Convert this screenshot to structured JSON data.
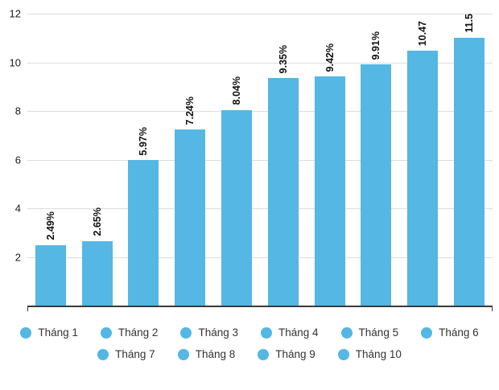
{
  "chart_data": {
    "type": "bar",
    "categories": [
      "Tháng 1",
      "Tháng 2",
      "Tháng 3",
      "Tháng 4",
      "Tháng 5",
      "Tháng 6",
      "Tháng 7",
      "Tháng 8",
      "Tháng 9",
      "Tháng 10"
    ],
    "values": [
      2.49,
      2.65,
      5.97,
      7.24,
      8.04,
      9.35,
      9.42,
      9.91,
      10.47,
      11.5
    ],
    "value_labels": [
      "2.49%",
      "2.65%",
      "5.97%",
      "7.24%",
      "8.04%",
      "9.35%",
      "9.42%",
      "9.91%",
      "10.47",
      "11.5"
    ],
    "title": "",
    "xlabel": "",
    "ylabel": "",
    "ylim": [
      0,
      12
    ],
    "yticks": [
      2,
      4,
      6,
      8,
      10,
      12
    ],
    "grid": true,
    "legend_position": "bottom",
    "legend_items_per_row": 6,
    "bar_color": "#54B7E4",
    "axis_color": "#3a3a3a",
    "gridline_color": "#dcdcdc"
  }
}
